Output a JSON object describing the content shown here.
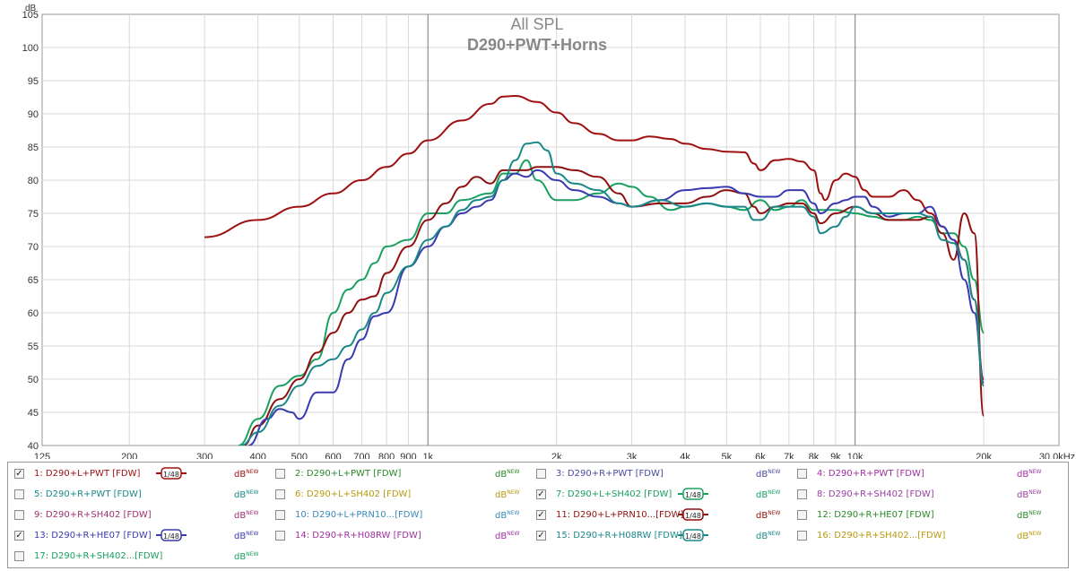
{
  "chart_data": {
    "type": "line",
    "title": "All SPL",
    "subtitle": "D290+PWT+Horns",
    "ylabel": "dB",
    "xunit": "Hz",
    "xscale": "log",
    "xlim": [
      125,
      30000
    ],
    "ylim": [
      40,
      105
    ],
    "yticks": [
      40,
      45,
      50,
      55,
      60,
      65,
      70,
      75,
      80,
      85,
      90,
      95,
      100,
      105
    ],
    "xticks": [
      {
        "v": 125,
        "label": "125"
      },
      {
        "v": 200,
        "label": "200"
      },
      {
        "v": 300,
        "label": "300"
      },
      {
        "v": 400,
        "label": "400"
      },
      {
        "v": 500,
        "label": "500"
      },
      {
        "v": 600,
        "label": "600"
      },
      {
        "v": 700,
        "label": "700"
      },
      {
        "v": 800,
        "label": "800"
      },
      {
        "v": 900,
        "label": "900"
      },
      {
        "v": 1000,
        "label": "1k"
      },
      {
        "v": 2000,
        "label": "2k"
      },
      {
        "v": 3000,
        "label": "3k"
      },
      {
        "v": 4000,
        "label": "4k"
      },
      {
        "v": 5000,
        "label": "5k"
      },
      {
        "v": 6000,
        "label": "6k"
      },
      {
        "v": 7000,
        "label": "7k"
      },
      {
        "v": 8000,
        "label": "8k"
      },
      {
        "v": 9000,
        "label": "9k"
      },
      {
        "v": 10000,
        "label": "10k"
      },
      {
        "v": 20000,
        "label": "20k"
      },
      {
        "v": 30000,
        "label": "30.0kHz"
      }
    ],
    "grid": true,
    "series": [
      {
        "name": "1: D290+L+PWT [FDW]",
        "color": "#a01010",
        "points": [
          [
            300,
            71.4
          ],
          [
            400,
            74
          ],
          [
            500,
            76
          ],
          [
            600,
            78
          ],
          [
            700,
            80
          ],
          [
            800,
            82
          ],
          [
            900,
            84
          ],
          [
            1000,
            86
          ],
          [
            1200,
            89
          ],
          [
            1400,
            91.5
          ],
          [
            1500,
            92.6
          ],
          [
            1600,
            92.7
          ],
          [
            1800,
            91.8
          ],
          [
            2000,
            90.2
          ],
          [
            2200,
            88.6
          ],
          [
            2500,
            87
          ],
          [
            2800,
            86
          ],
          [
            3000,
            86
          ],
          [
            3300,
            86.6
          ],
          [
            3700,
            86.2
          ],
          [
            4000,
            85.5
          ],
          [
            4500,
            84.7
          ],
          [
            5000,
            84.3
          ],
          [
            5500,
            84.2
          ],
          [
            5800,
            82.5
          ],
          [
            6000,
            81.5
          ],
          [
            6500,
            83
          ],
          [
            7000,
            83.2
          ],
          [
            7500,
            82.8
          ],
          [
            8000,
            81.5
          ],
          [
            8300,
            78
          ],
          [
            8500,
            77
          ],
          [
            9000,
            80
          ],
          [
            9500,
            81
          ],
          [
            10000,
            80.5
          ],
          [
            10500,
            78.5
          ],
          [
            11000,
            77.5
          ],
          [
            12000,
            77.5
          ],
          [
            13000,
            78.5
          ],
          [
            14000,
            77
          ],
          [
            15000,
            75
          ],
          [
            16000,
            73
          ],
          [
            17000,
            71
          ],
          [
            18000,
            68
          ],
          [
            19000,
            62
          ],
          [
            20000,
            50
          ]
        ]
      },
      {
        "name": "7: D290+L+SH402 [FDW]",
        "color": "#1aa060",
        "points": [
          [
            360,
            40
          ],
          [
            400,
            44
          ],
          [
            450,
            49
          ],
          [
            500,
            50.5
          ],
          [
            550,
            53
          ],
          [
            600,
            60
          ],
          [
            650,
            63.5
          ],
          [
            700,
            65
          ],
          [
            750,
            67.5
          ],
          [
            800,
            70
          ],
          [
            900,
            71
          ],
          [
            1000,
            75
          ],
          [
            1100,
            75
          ],
          [
            1200,
            77
          ],
          [
            1400,
            78
          ],
          [
            1500,
            81
          ],
          [
            1600,
            81
          ],
          [
            1700,
            83
          ],
          [
            1800,
            80
          ],
          [
            2000,
            77
          ],
          [
            2200,
            77
          ],
          [
            2500,
            78
          ],
          [
            2800,
            79.5
          ],
          [
            3000,
            79
          ],
          [
            3300,
            77.5
          ],
          [
            3700,
            75.5
          ],
          [
            4000,
            76
          ],
          [
            4500,
            76.5
          ],
          [
            5000,
            76
          ],
          [
            5500,
            75.5
          ],
          [
            6000,
            77
          ],
          [
            6500,
            75.5
          ],
          [
            7000,
            76
          ],
          [
            7500,
            77
          ],
          [
            8000,
            75.5
          ],
          [
            9000,
            75.5
          ],
          [
            10000,
            75
          ],
          [
            11000,
            74.5
          ],
          [
            12000,
            74
          ],
          [
            13000,
            74
          ],
          [
            14000,
            74.5
          ],
          [
            15000,
            74
          ],
          [
            16000,
            72
          ],
          [
            17000,
            72
          ],
          [
            18000,
            70
          ],
          [
            19000,
            65
          ],
          [
            20000,
            57
          ]
        ]
      },
      {
        "name": "11: D290+L+PRN10...[FDW]",
        "color": "#901010",
        "points": [
          [
            370,
            40
          ],
          [
            400,
            43
          ],
          [
            450,
            47
          ],
          [
            500,
            50
          ],
          [
            550,
            54
          ],
          [
            600,
            57
          ],
          [
            650,
            60
          ],
          [
            700,
            62
          ],
          [
            750,
            62.5
          ],
          [
            800,
            66
          ],
          [
            900,
            70
          ],
          [
            1000,
            74
          ],
          [
            1100,
            76.5
          ],
          [
            1200,
            79
          ],
          [
            1300,
            80.5
          ],
          [
            1400,
            79.5
          ],
          [
            1500,
            81.5
          ],
          [
            1700,
            81.5
          ],
          [
            1800,
            82
          ],
          [
            2000,
            82
          ],
          [
            2200,
            81.5
          ],
          [
            2500,
            80.5
          ],
          [
            2800,
            78
          ],
          [
            3000,
            76
          ],
          [
            3500,
            76.5
          ],
          [
            4000,
            76.5
          ],
          [
            4500,
            77.5
          ],
          [
            5000,
            78.5
          ],
          [
            5500,
            78
          ],
          [
            5800,
            76
          ],
          [
            6000,
            75
          ],
          [
            6500,
            76
          ],
          [
            7000,
            76.5
          ],
          [
            7500,
            76.5
          ],
          [
            8000,
            75
          ],
          [
            8300,
            73.5
          ],
          [
            9000,
            75
          ],
          [
            10000,
            76
          ],
          [
            11000,
            75
          ],
          [
            12000,
            74
          ],
          [
            13000,
            74
          ],
          [
            14000,
            74
          ],
          [
            15000,
            74.5
          ],
          [
            16000,
            72
          ],
          [
            17000,
            68
          ],
          [
            18000,
            75
          ],
          [
            19000,
            72
          ],
          [
            20000,
            44.5
          ]
        ]
      },
      {
        "name": "13: D290+R+HE07 [FDW]",
        "color": "#3a3ab0",
        "points": [
          [
            380,
            40
          ],
          [
            420,
            44
          ],
          [
            450,
            45.5
          ],
          [
            480,
            45
          ],
          [
            500,
            44
          ],
          [
            550,
            48
          ],
          [
            600,
            48
          ],
          [
            650,
            53
          ],
          [
            700,
            56
          ],
          [
            750,
            59.5
          ],
          [
            800,
            60
          ],
          [
            900,
            67
          ],
          [
            1000,
            70
          ],
          [
            1100,
            73
          ],
          [
            1200,
            75
          ],
          [
            1300,
            76
          ],
          [
            1400,
            77
          ],
          [
            1500,
            80
          ],
          [
            1600,
            81
          ],
          [
            1700,
            80.5
          ],
          [
            1800,
            81.5
          ],
          [
            2000,
            80
          ],
          [
            2200,
            78.5
          ],
          [
            2500,
            77.5
          ],
          [
            2800,
            76.5
          ],
          [
            3000,
            76
          ],
          [
            3500,
            77
          ],
          [
            4000,
            78.5
          ],
          [
            4500,
            78.8
          ],
          [
            5000,
            79
          ],
          [
            5500,
            78
          ],
          [
            6000,
            77.5
          ],
          [
            6500,
            77.5
          ],
          [
            7000,
            78.5
          ],
          [
            7500,
            78.5
          ],
          [
            8000,
            76.5
          ],
          [
            8300,
            75
          ],
          [
            9000,
            76.5
          ],
          [
            9500,
            77
          ],
          [
            10000,
            77.5
          ],
          [
            10500,
            77.5
          ],
          [
            11000,
            76
          ],
          [
            12000,
            74.5
          ],
          [
            13000,
            75
          ],
          [
            14000,
            75
          ],
          [
            15000,
            76
          ],
          [
            16000,
            73
          ],
          [
            17000,
            71
          ],
          [
            18000,
            65
          ],
          [
            19000,
            60
          ],
          [
            20000,
            49.5
          ]
        ]
      },
      {
        "name": "15: D290+R+H08RW [FDW]",
        "color": "#1a8888",
        "points": [
          [
            365,
            40
          ],
          [
            400,
            42
          ],
          [
            450,
            46
          ],
          [
            500,
            49
          ],
          [
            550,
            52
          ],
          [
            600,
            53
          ],
          [
            650,
            55
          ],
          [
            700,
            57.5
          ],
          [
            750,
            60
          ],
          [
            800,
            63
          ],
          [
            900,
            67
          ],
          [
            1000,
            71
          ],
          [
            1100,
            73
          ],
          [
            1200,
            75.5
          ],
          [
            1300,
            77
          ],
          [
            1400,
            77.5
          ],
          [
            1500,
            80
          ],
          [
            1600,
            83
          ],
          [
            1700,
            85.5
          ],
          [
            1800,
            85.7
          ],
          [
            1900,
            84.5
          ],
          [
            2000,
            81
          ],
          [
            2200,
            79.5
          ],
          [
            2500,
            78.5
          ],
          [
            2800,
            76.5
          ],
          [
            3000,
            76
          ],
          [
            3500,
            77
          ],
          [
            4000,
            76
          ],
          [
            4500,
            76.5
          ],
          [
            5000,
            76
          ],
          [
            5500,
            76
          ],
          [
            5800,
            74
          ],
          [
            6000,
            74
          ],
          [
            6500,
            76
          ],
          [
            7000,
            76
          ],
          [
            7500,
            76
          ],
          [
            8000,
            74.5
          ],
          [
            8300,
            72
          ],
          [
            9000,
            73
          ],
          [
            9500,
            74.5
          ],
          [
            10000,
            76
          ],
          [
            11000,
            75
          ],
          [
            12000,
            75
          ],
          [
            13000,
            75
          ],
          [
            14000,
            75
          ],
          [
            15000,
            74.5
          ],
          [
            16000,
            71
          ],
          [
            17000,
            70.5
          ],
          [
            18000,
            68
          ],
          [
            19000,
            62
          ],
          [
            20000,
            49
          ]
        ]
      }
    ]
  },
  "legend": {
    "db_label": "dB",
    "db_sup": "NEW",
    "smooth_label": "1/48",
    "items": [
      {
        "label": "1: D290+L+PWT [FDW]",
        "checked": true,
        "color": "#a01010",
        "smooth": true
      },
      {
        "label": "2: D290+L+PWT [FDW]",
        "checked": false,
        "color": "#2a8a2a",
        "smooth": false
      },
      {
        "label": "3: D290+R+PWT [FDW]",
        "checked": false,
        "color": "#4a4aa0",
        "smooth": false
      },
      {
        "label": "4: D290+R+PWT [FDW]",
        "checked": false,
        "color": "#a030a0",
        "smooth": false
      },
      {
        "label": "5: D290+R+PWT [FDW]",
        "checked": false,
        "color": "#1a8888",
        "smooth": false
      },
      {
        "label": "6: D290+L+SH402 [FDW]",
        "checked": false,
        "color": "#b89a10",
        "smooth": false
      },
      {
        "label": "7: D290+L+SH402 [FDW]",
        "checked": true,
        "color": "#1aa060",
        "smooth": true
      },
      {
        "label": "8: D290+R+SH402 [FDW]",
        "checked": false,
        "color": "#9a40a0",
        "smooth": false
      },
      {
        "label": "9: D290+R+SH402 [FDW]",
        "checked": false,
        "color": "#a03070",
        "smooth": false
      },
      {
        "label": "10: D290+L+PRN10...[FDW]",
        "checked": false,
        "color": "#3a8ab8",
        "smooth": false
      },
      {
        "label": "11: D290+L+PRN10...[FDW]",
        "checked": true,
        "color": "#901010",
        "smooth": true
      },
      {
        "label": "12: D290+R+HE07 [FDW]",
        "checked": false,
        "color": "#2a8a2a",
        "smooth": false
      },
      {
        "label": "13: D290+R+HE07 [FDW]",
        "checked": true,
        "color": "#3a3ab0",
        "smooth": true
      },
      {
        "label": "14: D290+R+H08RW [FDW]",
        "checked": false,
        "color": "#a030a0",
        "smooth": false
      },
      {
        "label": "15: D290+R+H08RW [FDW]",
        "checked": true,
        "color": "#1a8888",
        "smooth": true
      },
      {
        "label": "16: D290+R+SH402...[FDW]",
        "checked": false,
        "color": "#b89a10",
        "smooth": false
      },
      {
        "label": "17: D290+R+SH402...[FDW]",
        "checked": false,
        "color": "#1aa060",
        "smooth": false
      }
    ]
  }
}
